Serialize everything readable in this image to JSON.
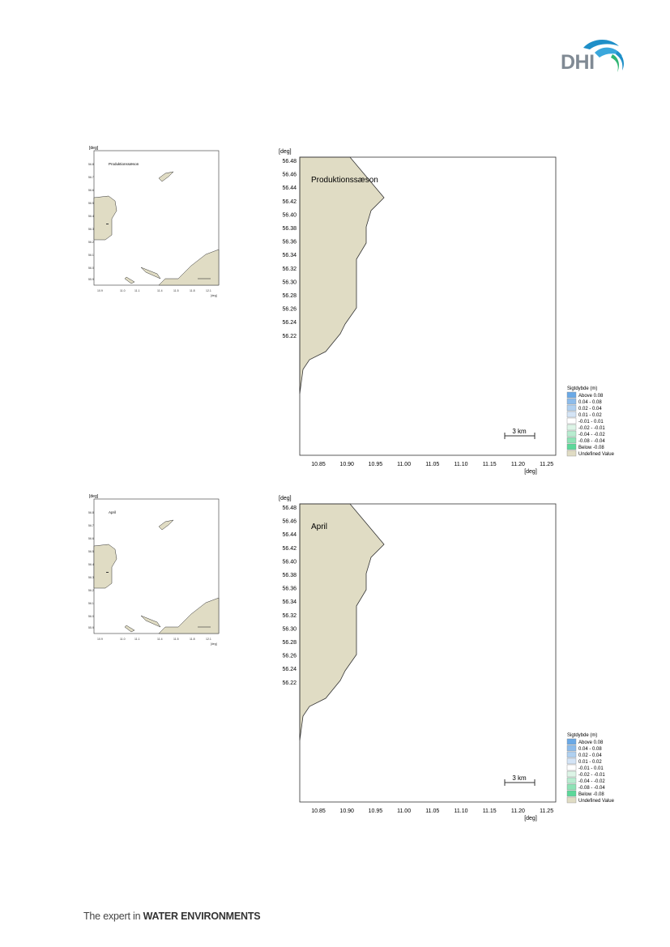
{
  "header": {
    "logo_text": "DHI"
  },
  "footer": {
    "tagline_plain": "The expert in ",
    "tagline_bold": "WATER ENVIRONMENTS"
  },
  "colors": {
    "land": "#e0dcc4",
    "border": "#3a3a3a",
    "logo_blue": "#1e8fc8",
    "logo_green": "#2fb573"
  },
  "panels": [
    {
      "label": "Produktionssæson",
      "thumb_label": "Produktionssæson",
      "axis_unit": "[deg]",
      "y_ticks": [
        "56.48",
        "56.46",
        "56.44",
        "56.42",
        "56.40",
        "56.38",
        "56.36",
        "56.34",
        "56.32",
        "56.30",
        "56.28",
        "56.26",
        "56.24",
        "56.22"
      ],
      "x_ticks": [
        "10.85",
        "10.90",
        "10.95",
        "11.00",
        "11.05",
        "11.10",
        "11.15",
        "11.20",
        "11.25"
      ],
      "scale_bar": "3 km",
      "legend": {
        "title": "Sigtdybde (m)",
        "items": [
          {
            "label": "Above  0.08",
            "color": "#6aa9e6"
          },
          {
            "label": " 0.04 -  0.08",
            "color": "#8dbceb"
          },
          {
            "label": " 0.02 -  0.04",
            "color": "#b0d0f0"
          },
          {
            "label": " 0.01 -  0.02",
            "color": "#d4e4f6"
          },
          {
            "label": "-0.01 -  0.01",
            "color": "#ffffff"
          },
          {
            "label": "-0.02 - -0.01",
            "color": "#dcf4e6"
          },
          {
            "label": "-0.04 - -0.02",
            "color": "#b8ecd0"
          },
          {
            "label": "-0.08 - -0.04",
            "color": "#8ee3b6"
          },
          {
            "label": "Below -0.08",
            "color": "#5cd89a"
          },
          {
            "label": "Undefined Value",
            "color": "#e0dcc4"
          }
        ]
      }
    },
    {
      "label": "April",
      "thumb_label": "April",
      "axis_unit": "[deg]",
      "y_ticks": [
        "56.48",
        "56.46",
        "56.44",
        "56.42",
        "56.40",
        "56.38",
        "56.36",
        "56.34",
        "56.32",
        "56.30",
        "56.28",
        "56.26",
        "56.24",
        "56.22"
      ],
      "x_ticks": [
        "10.85",
        "10.90",
        "10.95",
        "11.00",
        "11.05",
        "11.10",
        "11.15",
        "11.20",
        "11.25"
      ],
      "scale_bar": "3 km",
      "legend": {
        "title": "Sigtdybde (m)",
        "items": [
          {
            "label": "Above  0.08",
            "color": "#6aa9e6"
          },
          {
            "label": " 0.04 -  0.08",
            "color": "#8dbceb"
          },
          {
            "label": " 0.02 -  0.04",
            "color": "#b0d0f0"
          },
          {
            "label": " 0.01 -  0.02",
            "color": "#d4e4f6"
          },
          {
            "label": "-0.01 -  0.01",
            "color": "#ffffff"
          },
          {
            "label": "-0.02 - -0.01",
            "color": "#dcf4e6"
          },
          {
            "label": "-0.04 - -0.02",
            "color": "#b8ecd0"
          },
          {
            "label": "-0.08 - -0.04",
            "color": "#8ee3b6"
          },
          {
            "label": "Below -0.08",
            "color": "#5cd89a"
          },
          {
            "label": "Undefined Value",
            "color": "#e0dcc4"
          }
        ]
      }
    }
  ]
}
